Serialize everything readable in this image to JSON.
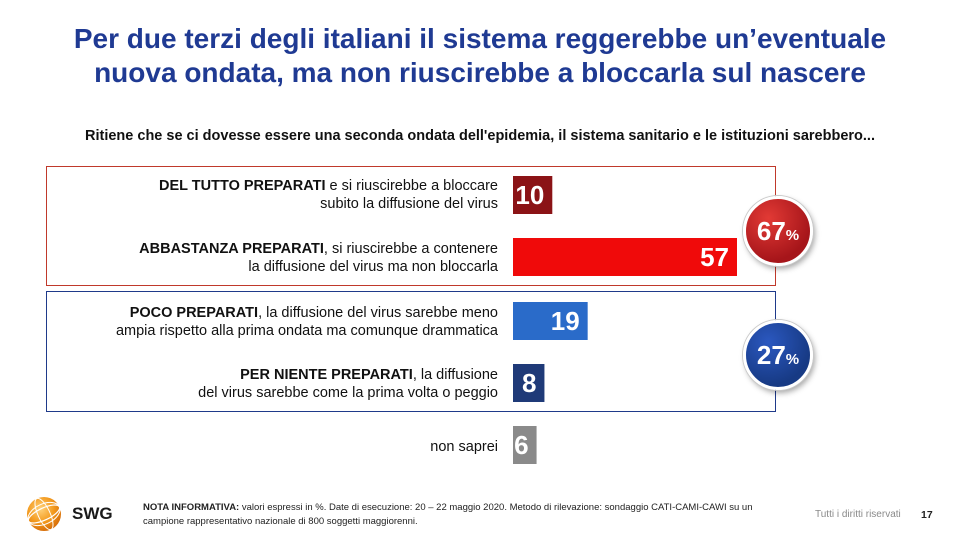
{
  "title_line1": "Per due terzi degli italiani il sistema reggerebbe un’eventuale",
  "title_line2": "nuova ondata, ma non riuscirebbe a bloccarla sul nascere",
  "question": "Ritiene che se ci dovesse essere una seconda ondata dell'epidemia, il sistema sanitario e le istituzioni sarebbero...",
  "rows": [
    {
      "bold": "DEL TUTTO PREPARATI",
      "rest1": " e si riuscirebbe a bloccare",
      "line2": "subito la diffusione del virus"
    },
    {
      "bold": "ABBASTANZA PREPARATI",
      "rest1": ", si riuscirebbe a contenere",
      "line2": "la diffusione del virus ma non bloccarla"
    },
    {
      "bold": "POCO PREPARATI",
      "rest1": ", la diffusione del virus sarebbe meno",
      "line2": "ampia rispetto alla prima ondata ma comunque drammatica"
    },
    {
      "bold": "PER NIENTE PREPARATI",
      "rest1": ", la diffusione",
      "line2": "del virus sarebbe come la prima volta o peggio"
    },
    {
      "bold": "",
      "rest1": "non saprei",
      "line2": ""
    }
  ],
  "summary": {
    "prepared_value": "67",
    "prepared_unit": "%",
    "prepared_color": "#c0171c",
    "unprepared_value": "27",
    "unprepared_unit": "%",
    "unprepared_color": "#1f4499"
  },
  "chart_data": {
    "type": "bar",
    "orientation": "horizontal",
    "unit": "%",
    "categories": [
      "DEL TUTTO PREPARATI e si riuscirebbe a bloccare subito la diffusione del virus",
      "ABBASTANZA PREPARATI, si riuscirebbe a contenere la diffusione del virus ma non bloccarla",
      "POCO PREPARATI, la diffusione del virus sarebbe meno ampia rispetto alla prima ondata ma comunque drammatica",
      "PER NIENTE PREPARATI, la diffusione del virus sarebbe come la prima volta o peggio",
      "non saprei"
    ],
    "values": [
      10,
      57,
      19,
      8,
      6
    ],
    "colors": [
      "#8b1316",
      "#f00a0a",
      "#2a6bc9",
      "#1f3a78",
      "#8a8a8a"
    ],
    "xlim": [
      0,
      57
    ],
    "grid": false,
    "legend": "none"
  },
  "footer": {
    "logo_text": "SWG",
    "note_label": "NOTA INFORMATIVA:",
    "note_text": " valori espressi in %. Date di esecuzione: 20 – 22 maggio 2020. Metodo di rilevazione: sondaggio CATI-CAMI-CAWI su un campione rappresentativo nazionale di 800 soggetti maggiorenni.",
    "rights": "Tutti i diritti riservati",
    "page_number": "17"
  }
}
